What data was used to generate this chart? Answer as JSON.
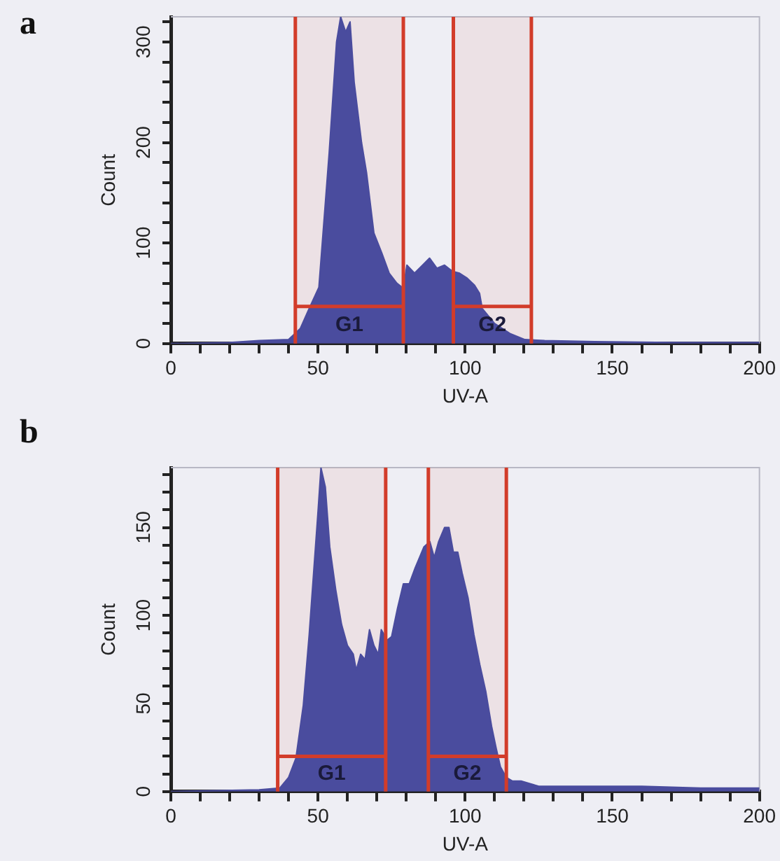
{
  "chart_data": [
    {
      "type": "area",
      "title": "a",
      "xlabel": "UV-A",
      "ylabel": "Count",
      "xlim": [
        0,
        200
      ],
      "ylim": [
        0,
        325
      ],
      "xticks": [
        0,
        {
          "value": 10,
          "label": null
        },
        {
          "value": 20,
          "label": null
        },
        {
          "value": 30,
          "label": null
        },
        {
          "value": 40,
          "label": null
        },
        50,
        {
          "value": 60,
          "label": null
        },
        {
          "value": 70,
          "label": null
        },
        {
          "value": 80,
          "label": null
        },
        {
          "value": 90,
          "label": null
        },
        100,
        {
          "value": 110,
          "label": null
        },
        {
          "value": 120,
          "label": null
        },
        {
          "value": 130,
          "label": null
        },
        {
          "value": 140,
          "label": null
        },
        150,
        {
          "value": 160,
          "label": null
        },
        {
          "value": 170,
          "label": null
        },
        {
          "value": 180,
          "label": null
        },
        {
          "value": 190,
          "label": null
        },
        200
      ],
      "yticks": [
        0,
        {
          "value": 20,
          "label": null
        },
        {
          "value": 40,
          "label": null
        },
        {
          "value": 60,
          "label": null
        },
        {
          "value": 80,
          "label": null
        },
        100,
        {
          "value": 120,
          "label": null
        },
        {
          "value": 140,
          "label": null
        },
        {
          "value": 160,
          "label": null
        },
        {
          "value": 180,
          "label": null
        },
        200,
        {
          "value": 220,
          "label": null
        },
        {
          "value": 240,
          "label": null
        },
        {
          "value": 260,
          "label": null
        },
        {
          "value": 280,
          "label": null
        },
        300,
        {
          "value": 320,
          "label": null
        }
      ],
      "grid": false,
      "legend": false,
      "marker": "none",
      "series": [
        {
          "color": "#4a4c9e",
          "x": [
            0,
            20,
            30,
            40,
            44,
            47,
            50.3,
            53.8,
            56.3,
            57.7,
            59.4,
            60.9,
            62.3,
            64.8,
            66.5,
            69,
            71.7,
            74.2,
            76.8,
            79,
            80.2,
            82.8,
            86.2,
            87.9,
            90.4,
            93,
            95.6,
            98.1,
            100.7,
            103.2,
            104.9,
            105.8,
            110,
            115.2,
            120.3,
            127,
            144,
            170,
            200
          ],
          "values": [
            0,
            1,
            3,
            4,
            15,
            35,
            56,
            190,
            300,
            325,
            310,
            320,
            260,
            200,
            170,
            110,
            90,
            70,
            60,
            55,
            78,
            70,
            80,
            85,
            75,
            78,
            72,
            70,
            65,
            58,
            50,
            35,
            20,
            10,
            4,
            3,
            2,
            1,
            1
          ]
        },
        {
          "type": "line",
          "color": "#d23c2a",
          "x": [
            42.3,
            79
          ],
          "values": [
            37,
            37
          ]
        },
        {
          "type": "line",
          "color": "#d23c2a",
          "x": [
            96,
            122.5
          ],
          "values": [
            37,
            37
          ]
        }
      ],
      "bands": [
        {
          "axis": "x",
          "from": 42.3,
          "to": 79,
          "label": "G1",
          "color": "#d23c2a"
        },
        {
          "axis": "x",
          "from": 96,
          "to": 122.5,
          "label": "G2",
          "color": "#d23c2a"
        }
      ],
      "ref_lines": [
        {
          "axis": "x",
          "value": 42.3,
          "color": "#d23c2a"
        },
        {
          "axis": "x",
          "value": 79,
          "color": "#d23c2a"
        },
        {
          "axis": "x",
          "value": 96,
          "color": "#d23c2a"
        },
        {
          "axis": "x",
          "value": 122.5,
          "color": "#d23c2a"
        }
      ]
    },
    {
      "type": "area",
      "title": "b",
      "xlabel": "UV-A",
      "ylabel": "Count",
      "xlim": [
        0,
        200
      ],
      "ylim": [
        0,
        184
      ],
      "xticks": [
        0,
        {
          "value": 10,
          "label": null
        },
        {
          "value": 20,
          "label": null
        },
        {
          "value": 30,
          "label": null
        },
        {
          "value": 40,
          "label": null
        },
        50,
        {
          "value": 60,
          "label": null
        },
        {
          "value": 70,
          "label": null
        },
        {
          "value": 80,
          "label": null
        },
        {
          "value": 90,
          "label": null
        },
        100,
        {
          "value": 110,
          "label": null
        },
        {
          "value": 120,
          "label": null
        },
        {
          "value": 130,
          "label": null
        },
        {
          "value": 140,
          "label": null
        },
        150,
        {
          "value": 160,
          "label": null
        },
        {
          "value": 170,
          "label": null
        },
        {
          "value": 180,
          "label": null
        },
        {
          "value": 190,
          "label": null
        },
        200
      ],
      "yticks": [
        0,
        {
          "value": 10,
          "label": null
        },
        {
          "value": 20,
          "label": null
        },
        {
          "value": 30,
          "label": null
        },
        {
          "value": 40,
          "label": null
        },
        50,
        {
          "value": 60,
          "label": null
        },
        {
          "value": 70,
          "label": null
        },
        {
          "value": 80,
          "label": null
        },
        {
          "value": 90,
          "label": null
        },
        100,
        {
          "value": 110,
          "label": null
        },
        {
          "value": 120,
          "label": null
        },
        {
          "value": 130,
          "label": null
        },
        {
          "value": 140,
          "label": null
        },
        150,
        {
          "value": 160,
          "label": null
        },
        {
          "value": 170,
          "label": null
        },
        {
          "value": 180,
          "label": null
        }
      ],
      "grid": false,
      "legend": false,
      "marker": "none",
      "series": [
        {
          "color": "#4a4c9e",
          "x": [
            0,
            30,
            37,
            40,
            42.5,
            45,
            47,
            48.5,
            50,
            51,
            52.5,
            54,
            56,
            58,
            60,
            62,
            63,
            64.5,
            66,
            67.5,
            69,
            70.5,
            71.5,
            72.5,
            73.5,
            75,
            77,
            79,
            81,
            83,
            84.5,
            86,
            88,
            89.5,
            91,
            93,
            94.5,
            96,
            97.5,
            99,
            101,
            103,
            105,
            107,
            109,
            110.5,
            112,
            114,
            116,
            119,
            121,
            125,
            140,
            160,
            180,
            200
          ],
          "values": [
            0,
            1,
            2,
            8,
            19,
            49,
            89,
            124,
            159,
            184,
            173,
            139,
            115,
            95,
            83,
            78,
            69,
            78,
            75,
            92,
            83,
            78,
            92,
            89,
            86,
            88,
            104,
            118,
            118,
            127,
            133,
            139,
            142,
            133,
            142,
            150,
            150,
            136,
            136,
            124,
            110,
            89,
            72,
            57,
            37,
            25,
            14,
            8,
            6,
            6,
            5,
            3,
            3,
            3,
            2,
            2
          ]
        },
        {
          "type": "line",
          "color": "#d23c2a",
          "x": [
            36.3,
            73
          ],
          "values": [
            20,
            20
          ]
        },
        {
          "type": "line",
          "color": "#d23c2a",
          "x": [
            87.5,
            114
          ],
          "values": [
            20,
            20
          ]
        }
      ],
      "bands": [
        {
          "axis": "x",
          "from": 36.3,
          "to": 73,
          "label": "G1",
          "color": "#d23c2a"
        },
        {
          "axis": "x",
          "from": 87.5,
          "to": 114,
          "label": "G2",
          "color": "#d23c2a"
        }
      ],
      "ref_lines": [
        {
          "axis": "x",
          "value": 36.3,
          "color": "#d23c2a"
        },
        {
          "axis": "x",
          "value": 73,
          "color": "#d23c2a"
        },
        {
          "axis": "x",
          "value": 87.5,
          "color": "#d23c2a"
        },
        {
          "axis": "x",
          "value": 114,
          "color": "#d23c2a"
        }
      ]
    }
  ]
}
